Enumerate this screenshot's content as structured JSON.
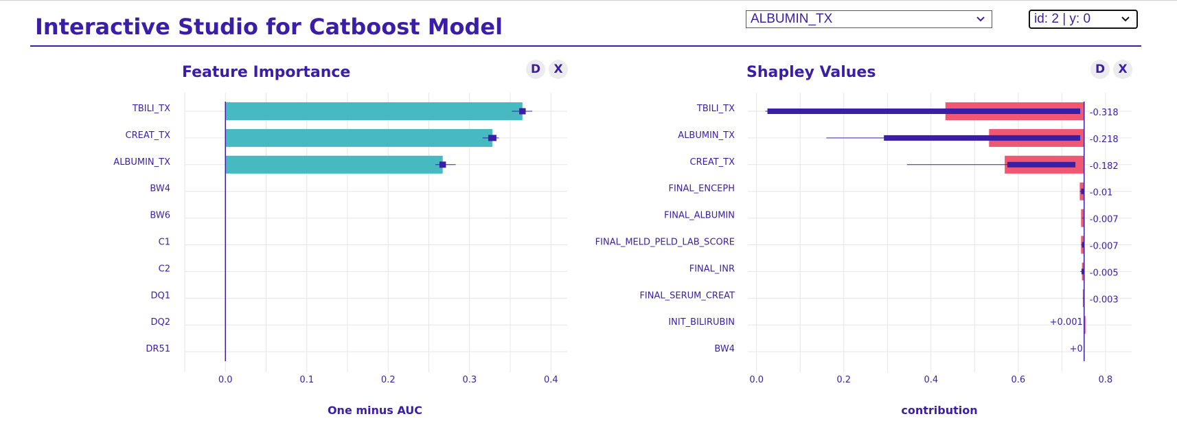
{
  "header": {
    "title": "Interactive Studio for Catboost Model",
    "feature_select": {
      "value": "ALBUMIN_TX"
    },
    "index_select": {
      "value": "id: 2 | y: 0"
    }
  },
  "colors": {
    "accent": "#3a1ea6",
    "teal": "#47b9c1",
    "red": "#ee5873"
  },
  "panels": {
    "importance": {
      "title": "Feature Importance",
      "btn_d": "D",
      "btn_x": "X"
    },
    "shapley": {
      "title": "Shapley Values",
      "btn_d": "D",
      "btn_x": "X"
    }
  },
  "chart_data": [
    {
      "type": "bar",
      "title": "Feature Importance",
      "orientation": "horizontal",
      "xlabel": "One minus AUC",
      "xlim": [
        -0.05,
        0.42
      ],
      "xticks": [
        "0.0",
        "0.1",
        "0.2",
        "0.3",
        "0.4"
      ],
      "xtick_values": [
        0,
        0.1,
        0.2,
        0.3,
        0.4
      ],
      "categories": [
        "TBILI_TX",
        "CREAT_TX",
        "ALBUMIN_TX",
        "BW4",
        "BW6",
        "C1",
        "C2",
        "DQ1",
        "DQ2",
        "DR51"
      ],
      "values": [
        0.365,
        0.328,
        0.267,
        0,
        0,
        0,
        0,
        0,
        0,
        0
      ],
      "error_mark": [
        0.365,
        0.328,
        0.267,
        0,
        0,
        0,
        0,
        0,
        0,
        0
      ],
      "error_box": [
        [
          0.361,
          0.369
        ],
        [
          0.323,
          0.333
        ],
        [
          0.263,
          0.271
        ],
        null,
        null,
        null,
        null,
        null,
        null,
        null
      ],
      "error_whisker": [
        [
          0.352,
          0.377
        ],
        [
          0.316,
          0.336
        ],
        [
          0.258,
          0.283
        ],
        null,
        null,
        null,
        null,
        null,
        null,
        null
      ]
    },
    {
      "type": "bar",
      "title": "Shapley Values",
      "orientation": "horizontal",
      "xlabel": "contribution",
      "xlim": [
        -0.02,
        0.86
      ],
      "xticks": [
        "0.0",
        "0.2",
        "0.4",
        "0.6",
        "0.8"
      ],
      "xtick_values": [
        0,
        0.2,
        0.4,
        0.6,
        0.8
      ],
      "baseline": 0.751,
      "categories": [
        "TBILI_TX",
        "ALBUMIN_TX",
        "CREAT_TX",
        "FINAL_ENCEPH",
        "FINAL_ALBUMIN",
        "FINAL_MELD_PELD_LAB_SCORE",
        "FINAL_INR",
        "FINAL_SERUM_CREAT",
        "INIT_BILIRUBIN",
        "BW4"
      ],
      "values": [
        -0.318,
        -0.218,
        -0.182,
        -0.01,
        -0.007,
        -0.007,
        -0.005,
        -0.003,
        0.001,
        0
      ],
      "value_labels": [
        "-0.318",
        "-0.218",
        "-0.182",
        "-0.01",
        "-0.007",
        "-0.007",
        "-0.005",
        "-0.003",
        "+0.001",
        "+0"
      ],
      "spread_box": [
        [
          0.025,
          0.742
        ],
        [
          0.292,
          0.742
        ],
        [
          0.575,
          0.731
        ],
        [
          0.744,
          0.75
        ],
        null,
        [
          0.746,
          0.75
        ],
        [
          0.745,
          0.75
        ],
        null,
        null,
        null
      ],
      "spread_whisker": [
        [
          0.02,
          0.742
        ],
        [
          0.16,
          0.742
        ],
        [
          0.345,
          0.731
        ],
        [
          0.741,
          0.752
        ],
        [
          0.746,
          0.75
        ],
        [
          0.744,
          0.751
        ],
        [
          0.742,
          0.751
        ],
        [
          0.748,
          0.751
        ],
        [
          0.75,
          0.752
        ],
        [
          0.75,
          0.751
        ]
      ]
    }
  ]
}
